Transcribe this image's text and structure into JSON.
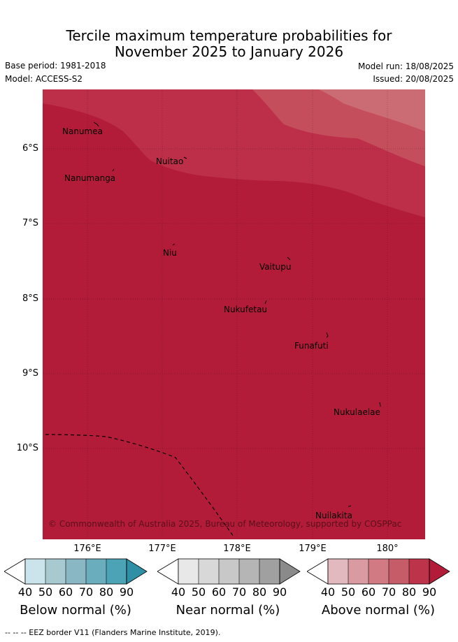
{
  "header": {
    "title_line1": "Tercile maximum temperature probabilities for",
    "title_line2": "November 2025 to January 2026",
    "base_period": "Base period: 1981-2018",
    "model": "Model: ACCESS-S2",
    "model_run": "Model run: 18/08/2025",
    "issued": "Issued: 20/08/2025"
  },
  "map": {
    "lat_labels": [
      "6°S",
      "7°S",
      "8°S",
      "9°S",
      "10°S"
    ],
    "lon_labels": [
      "176°E",
      "177°E",
      "178°E",
      "179°E",
      "180°"
    ],
    "places": [
      "Nanumea",
      "Nuitao",
      "Nanumanga",
      "Niu",
      "Vaitupu",
      "Nukufetau",
      "Funafuti",
      "Nukulaelae",
      "Nuilakita"
    ],
    "copyright": "© Commonwealth of Australia 2025, Bureau of Meteorology, supported by COSPPac",
    "colors": {
      "p90": "#b31c38",
      "p80": "#bd2f48",
      "p70": "#c54e5c",
      "p60": "#cb6c75"
    }
  },
  "legends": [
    {
      "title": "Below normal (%)",
      "ticks": [
        "40",
        "50",
        "60",
        "70",
        "80",
        "90"
      ],
      "colors": [
        "#ffffff",
        "#cbe3ea",
        "#a8c9d0",
        "#8ab7c4",
        "#6aaebe",
        "#4ba3b5",
        "#2e8fa5"
      ]
    },
    {
      "title": "Near normal (%)",
      "ticks": [
        "40",
        "50",
        "60",
        "70",
        "80",
        "90"
      ],
      "colors": [
        "#ffffff",
        "#e8e8e8",
        "#d8d8d8",
        "#c8c8c8",
        "#b5b5b5",
        "#a0a0a0",
        "#8a8a8a"
      ]
    },
    {
      "title": "Above normal (%)",
      "ticks": [
        "40",
        "50",
        "60",
        "70",
        "80",
        "90"
      ],
      "colors": [
        "#ffffff",
        "#e3b9c0",
        "#d99aa2",
        "#d17a83",
        "#c55c67",
        "#bd3349",
        "#b31c38"
      ]
    }
  ],
  "footer": "--  --  -- EEZ border V11 (Flanders Marine Institute, 2019)."
}
